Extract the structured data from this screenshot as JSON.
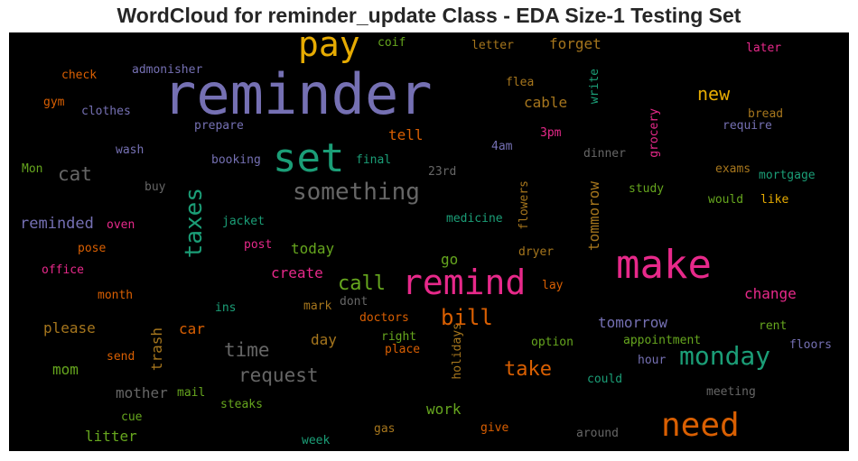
{
  "title": "WordCloud for reminder_update Class - EDA Size-1 Testing Set",
  "palette": {
    "purple": "#7570b3",
    "teal": "#1b9e77",
    "orange": "#d95f02",
    "magenta": "#e7298a",
    "green": "#66a61e",
    "gold": "#e6ab02",
    "brown": "#a6761d",
    "gray": "#666666"
  },
  "words": [
    {
      "text": "reminder",
      "color": "purple",
      "size": 62
    },
    {
      "text": "pay",
      "color": "gold",
      "size": 38
    },
    {
      "text": "set",
      "color": "teal",
      "size": 44
    },
    {
      "text": "make",
      "color": "magenta",
      "size": 44
    },
    {
      "text": "remind",
      "color": "magenta",
      "size": 38
    },
    {
      "text": "need",
      "color": "orange",
      "size": 36
    },
    {
      "text": "something",
      "color": "gray",
      "size": 26
    },
    {
      "text": "taxes",
      "color": "teal",
      "size": 26
    },
    {
      "text": "monday",
      "color": "teal",
      "size": 28
    },
    {
      "text": "bill",
      "color": "orange",
      "size": 24
    },
    {
      "text": "call",
      "color": "green",
      "size": 22
    },
    {
      "text": "take",
      "color": "orange",
      "size": 22
    },
    {
      "text": "time",
      "color": "gray",
      "size": 21
    },
    {
      "text": "request",
      "color": "gray",
      "size": 21
    },
    {
      "text": "cat",
      "color": "gray",
      "size": 21
    },
    {
      "text": "new",
      "color": "gold",
      "size": 20
    },
    {
      "text": "reminded",
      "color": "purple",
      "size": 17
    },
    {
      "text": "forget",
      "color": "brown",
      "size": 16
    },
    {
      "text": "cable",
      "color": "brown",
      "size": 16
    },
    {
      "text": "tell",
      "color": "orange",
      "size": 16
    },
    {
      "text": "tommorow",
      "color": "brown",
      "size": 16
    },
    {
      "text": "today",
      "color": "green",
      "size": 16
    },
    {
      "text": "create",
      "color": "magenta",
      "size": 16
    },
    {
      "text": "go",
      "color": "green",
      "size": 16
    },
    {
      "text": "change",
      "color": "magenta",
      "size": 16
    },
    {
      "text": "tomorrow",
      "color": "purple",
      "size": 16
    },
    {
      "text": "please",
      "color": "brown",
      "size": 16
    },
    {
      "text": "car",
      "color": "orange",
      "size": 16
    },
    {
      "text": "trash",
      "color": "brown",
      "size": 16
    },
    {
      "text": "day",
      "color": "brown",
      "size": 16
    },
    {
      "text": "mom",
      "color": "green",
      "size": 16
    },
    {
      "text": "mother",
      "color": "gray",
      "size": 16
    },
    {
      "text": "work",
      "color": "green",
      "size": 16
    },
    {
      "text": "litter",
      "color": "green",
      "size": 16
    },
    {
      "text": "check",
      "color": "orange",
      "size": 13
    },
    {
      "text": "admonisher",
      "color": "purple",
      "size": 13
    },
    {
      "text": "coif",
      "color": "green",
      "size": 13
    },
    {
      "text": "letter",
      "color": "brown",
      "size": 13
    },
    {
      "text": "flea",
      "color": "brown",
      "size": 13
    },
    {
      "text": "write",
      "color": "teal",
      "size": 13
    },
    {
      "text": "later",
      "color": "magenta",
      "size": 13
    },
    {
      "text": "gym",
      "color": "orange",
      "size": 13
    },
    {
      "text": "clothes",
      "color": "purple",
      "size": 13
    },
    {
      "text": "prepare",
      "color": "purple",
      "size": 13
    },
    {
      "text": "3pm",
      "color": "magenta",
      "size": 13
    },
    {
      "text": "bread",
      "color": "brown",
      "size": 13
    },
    {
      "text": "require",
      "color": "purple",
      "size": 13
    },
    {
      "text": "grocery",
      "color": "magenta",
      "size": 13
    },
    {
      "text": "wash",
      "color": "purple",
      "size": 13
    },
    {
      "text": "4am",
      "color": "purple",
      "size": 13
    },
    {
      "text": "dinner",
      "color": "gray",
      "size": 13
    },
    {
      "text": "Mon",
      "color": "green",
      "size": 13
    },
    {
      "text": "booking",
      "color": "purple",
      "size": 13
    },
    {
      "text": "final",
      "color": "teal",
      "size": 13
    },
    {
      "text": "23rd",
      "color": "gray",
      "size": 13
    },
    {
      "text": "exams",
      "color": "brown",
      "size": 13
    },
    {
      "text": "mortgage",
      "color": "teal",
      "size": 13
    },
    {
      "text": "buy",
      "color": "gray",
      "size": 13
    },
    {
      "text": "flowers",
      "color": "brown",
      "size": 13
    },
    {
      "text": "study",
      "color": "green",
      "size": 13
    },
    {
      "text": "would",
      "color": "green",
      "size": 13
    },
    {
      "text": "like",
      "color": "gold",
      "size": 13
    },
    {
      "text": "jacket",
      "color": "teal",
      "size": 13
    },
    {
      "text": "medicine",
      "color": "teal",
      "size": 13
    },
    {
      "text": "oven",
      "color": "magenta",
      "size": 13
    },
    {
      "text": "pose",
      "color": "orange",
      "size": 13
    },
    {
      "text": "post",
      "color": "magenta",
      "size": 13
    },
    {
      "text": "dryer",
      "color": "brown",
      "size": 13
    },
    {
      "text": "office",
      "color": "magenta",
      "size": 13
    },
    {
      "text": "lay",
      "color": "orange",
      "size": 13
    },
    {
      "text": "month",
      "color": "orange",
      "size": 13
    },
    {
      "text": "ins",
      "color": "teal",
      "size": 13
    },
    {
      "text": "mark",
      "color": "brown",
      "size": 13
    },
    {
      "text": "dont",
      "color": "gray",
      "size": 13
    },
    {
      "text": "doctors",
      "color": "orange",
      "size": 13
    },
    {
      "text": "rent",
      "color": "green",
      "size": 13
    },
    {
      "text": "right",
      "color": "green",
      "size": 13
    },
    {
      "text": "place",
      "color": "orange",
      "size": 13
    },
    {
      "text": "holidays",
      "color": "brown",
      "size": 13
    },
    {
      "text": "option",
      "color": "green",
      "size": 13
    },
    {
      "text": "appointment",
      "color": "green",
      "size": 13
    },
    {
      "text": "floors",
      "color": "purple",
      "size": 13
    },
    {
      "text": "send",
      "color": "orange",
      "size": 13
    },
    {
      "text": "hour",
      "color": "purple",
      "size": 13
    },
    {
      "text": "mail",
      "color": "green",
      "size": 13
    },
    {
      "text": "could",
      "color": "teal",
      "size": 13
    },
    {
      "text": "meeting",
      "color": "gray",
      "size": 13
    },
    {
      "text": "steaks",
      "color": "green",
      "size": 13
    },
    {
      "text": "cue",
      "color": "green",
      "size": 13
    },
    {
      "text": "gas",
      "color": "brown",
      "size": 13
    },
    {
      "text": "give",
      "color": "orange",
      "size": 13
    },
    {
      "text": "around",
      "color": "gray",
      "size": 13
    },
    {
      "text": "week",
      "color": "teal",
      "size": 13
    }
  ]
}
